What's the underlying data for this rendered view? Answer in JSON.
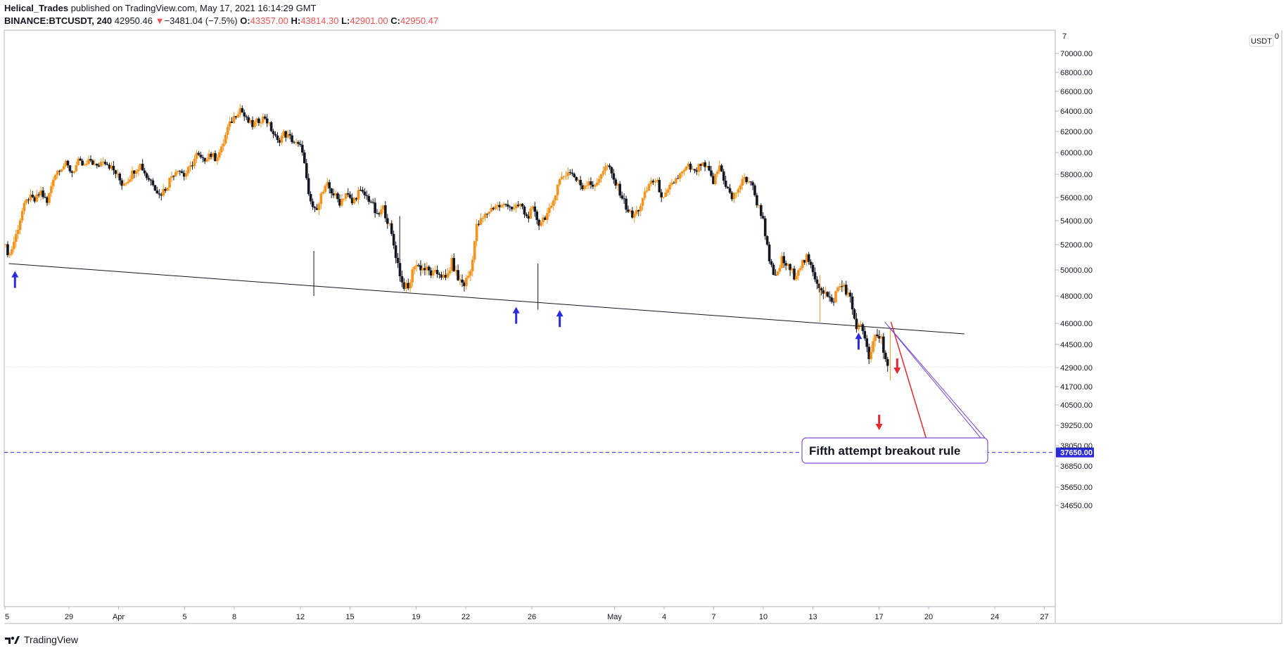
{
  "header": {
    "author": "Helical_Trades",
    "published": "published on TradingView.com, May 17, 2021 16:14:29 GMT",
    "symbol": "BINANCE:BTCUSDT, 240",
    "last": "42950.46",
    "change_arrow": "▼",
    "change": "−3481.04 (−7.5%)",
    "o_label": "O:",
    "o_val": "43357.00",
    "h_label": "H:",
    "h_val": "43814.30",
    "l_label": "L:",
    "l_val": "42901.00",
    "c_label": "C:",
    "c_val": "42950.47"
  },
  "footer": {
    "brand": "TradingView"
  },
  "colors": {
    "up": "#f7931a",
    "down": "#131722",
    "trendline": "#131722",
    "support_arrow": "#2b2bdb",
    "resistance_arrow": "#e8262f",
    "target_line": "#2b2bdb",
    "projection": "#e8262f",
    "price_tag_bg": "#2b2bdb",
    "callout_border": "#7b4bd6"
  },
  "chart_data": {
    "type": "candlestick",
    "symbol": "BINANCE:BTCUSDT",
    "interval": "240",
    "y_unit": "USDT",
    "y_ticks": [
      "70000.00",
      "68000.00",
      "66000.00",
      "64000.00",
      "62000.00",
      "60000.00",
      "58000.00",
      "56000.00",
      "54000.00",
      "52000.00",
      "50000.00",
      "48000.00",
      "46000.00",
      "44500.00",
      "42900.00",
      "41700.00",
      "40500.00",
      "39250.00",
      "38050.00",
      "36850.00",
      "35650.00",
      "34650.00"
    ],
    "y_top_tick_fragment": "7",
    "y_top_tick_fragment_end": "0",
    "x_ticks": [
      "5",
      "29",
      "Apr",
      "5",
      "8",
      "12",
      "15",
      "19",
      "22",
      "26",
      "May",
      "4",
      "7",
      "10",
      "13",
      "17",
      "20",
      "24",
      "27"
    ],
    "x_tick_days": [
      -26,
      0,
      3,
      7,
      10,
      14,
      17,
      21,
      24,
      28,
      33,
      36,
      39,
      42,
      45,
      49,
      52,
      56,
      59
    ],
    "price_path": [
      [
        0,
        52000
      ],
      [
        1,
        51200
      ],
      [
        2,
        52800
      ],
      [
        3,
        54800
      ],
      [
        4,
        56000
      ],
      [
        5,
        55700
      ],
      [
        6,
        56500
      ],
      [
        7,
        55500
      ],
      [
        8,
        57800
      ],
      [
        9,
        58600
      ],
      [
        10,
        58900
      ],
      [
        11,
        58200
      ],
      [
        12,
        59100
      ],
      [
        13,
        58700
      ],
      [
        14,
        59300
      ],
      [
        15,
        58600
      ],
      [
        16,
        59400
      ],
      [
        17,
        58800
      ],
      [
        18,
        58100
      ],
      [
        19,
        57200
      ],
      [
        20,
        57600
      ],
      [
        21,
        58400
      ],
      [
        22,
        58900
      ],
      [
        23,
        57800
      ],
      [
        24,
        57300
      ],
      [
        25,
        56200
      ],
      [
        26,
        56800
      ],
      [
        27,
        57900
      ],
      [
        28,
        58600
      ],
      [
        29,
        57900
      ],
      [
        30,
        58600
      ],
      [
        31,
        59800
      ],
      [
        32,
        59200
      ],
      [
        33,
        59900
      ],
      [
        34,
        59500
      ],
      [
        35,
        60300
      ],
      [
        36,
        62300
      ],
      [
        37,
        63400
      ],
      [
        38,
        64300
      ],
      [
        39,
        63100
      ],
      [
        40,
        62600
      ],
      [
        41,
        63100
      ],
      [
        42,
        63400
      ],
      [
        43,
        62200
      ],
      [
        44,
        61000
      ],
      [
        45,
        61800
      ],
      [
        46,
        61400
      ],
      [
        47,
        60800
      ],
      [
        48,
        60300
      ],
      [
        49,
        56000
      ],
      [
        50,
        54800
      ],
      [
        51,
        56200
      ],
      [
        52,
        57000
      ],
      [
        53,
        56300
      ],
      [
        54,
        55600
      ],
      [
        55,
        56400
      ],
      [
        56,
        55500
      ],
      [
        57,
        56500
      ],
      [
        58,
        56200
      ],
      [
        59,
        55700
      ],
      [
        60,
        54300
      ],
      [
        61,
        55100
      ],
      [
        62,
        53500
      ],
      [
        63,
        51200
      ],
      [
        64,
        49000
      ],
      [
        65,
        48500
      ],
      [
        66,
        50500
      ],
      [
        67,
        50200
      ],
      [
        68,
        50000
      ],
      [
        69,
        49600
      ],
      [
        70,
        49800
      ],
      [
        71,
        49200
      ],
      [
        72,
        50600
      ],
      [
        73,
        49300
      ],
      [
        74,
        48900
      ],
      [
        75,
        49900
      ],
      [
        76,
        53500
      ],
      [
        77,
        54200
      ],
      [
        78,
        54900
      ],
      [
        79,
        55300
      ],
      [
        80,
        55200
      ],
      [
        81,
        55500
      ],
      [
        82,
        54900
      ],
      [
        83,
        55400
      ],
      [
        84,
        54300
      ],
      [
        85,
        54900
      ],
      [
        86,
        53800
      ],
      [
        87,
        54400
      ],
      [
        88,
        55000
      ],
      [
        89,
        57300
      ],
      [
        90,
        57900
      ],
      [
        91,
        58300
      ],
      [
        92,
        57500
      ],
      [
        93,
        56900
      ],
      [
        94,
        57500
      ],
      [
        95,
        56800
      ],
      [
        96,
        58200
      ],
      [
        97,
        58800
      ],
      [
        98,
        57500
      ],
      [
        99,
        56500
      ],
      [
        100,
        55200
      ],
      [
        101,
        54300
      ],
      [
        102,
        55000
      ],
      [
        103,
        56200
      ],
      [
        104,
        57500
      ],
      [
        105,
        57200
      ],
      [
        106,
        55800
      ],
      [
        107,
        56800
      ],
      [
        108,
        57600
      ],
      [
        109,
        58100
      ],
      [
        110,
        58700
      ],
      [
        111,
        58100
      ],
      [
        112,
        58900
      ],
      [
        113,
        58500
      ],
      [
        114,
        57300
      ],
      [
        115,
        58800
      ],
      [
        116,
        57100
      ],
      [
        117,
        55900
      ],
      [
        118,
        56800
      ],
      [
        119,
        57600
      ],
      [
        120,
        57400
      ],
      [
        121,
        55600
      ],
      [
        122,
        54200
      ],
      [
        123,
        50500
      ],
      [
        124,
        49300
      ],
      [
        125,
        50800
      ],
      [
        126,
        50200
      ],
      [
        127,
        49600
      ],
      [
        128,
        50400
      ],
      [
        129,
        50900
      ],
      [
        130,
        49800
      ],
      [
        131,
        48800
      ],
      [
        132,
        48200
      ],
      [
        133,
        47400
      ],
      [
        134,
        48600
      ],
      [
        135,
        48800
      ],
      [
        136,
        47700
      ],
      [
        137,
        45800
      ],
      [
        138,
        45600
      ],
      [
        139,
        43300
      ],
      [
        140,
        45300
      ],
      [
        141,
        44900
      ],
      [
        142,
        42950
      ]
    ],
    "annotations": {
      "trendline": {
        "from": [
          0.5,
          50500
        ],
        "to": [
          154,
          45250
        ]
      },
      "support_arrows_day": [
        1.5,
        82,
        89,
        137
      ],
      "resistance_arrows": [
        {
          "t": 143.2,
          "dir": "down-above"
        },
        {
          "t": 140.3,
          "dir": "down-below"
        }
      ],
      "target_price": 37650.0,
      "target_label": "37650.00",
      "projection": {
        "from": [
          142.2,
          46100
        ],
        "to": [
          148.5,
          37700
        ]
      },
      "callout_text": "Fifth attempt breakout rule"
    }
  }
}
